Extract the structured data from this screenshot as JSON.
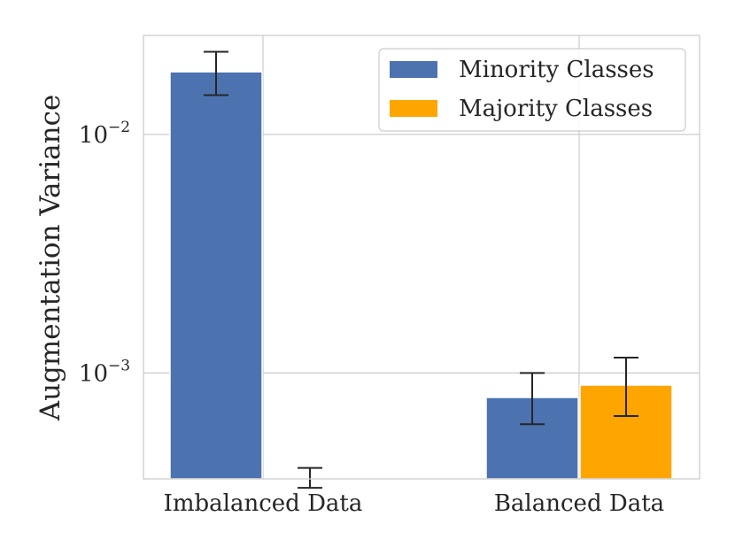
{
  "chart_data": {
    "type": "bar",
    "title": "",
    "xlabel": "",
    "ylabel": "Augmentation Variance",
    "yscale": "log",
    "ylim": [
      0.00036,
      0.026
    ],
    "yticks": [
      {
        "value": 0.01,
        "base": "10",
        "exp": "−2"
      },
      {
        "value": 0.001,
        "base": "10",
        "exp": "−3"
      }
    ],
    "grid": true,
    "legend_position": "top-right",
    "categories": [
      "Imbalanced Data",
      "Balanced Data"
    ],
    "series": [
      {
        "name": "Minority Classes",
        "color": "#4c72b0",
        "values": [
          0.0183,
          0.00079
        ],
        "err_low": [
          0.0146,
          0.00061
        ],
        "err_high": [
          0.0222,
          0.001
        ]
      },
      {
        "name": "Majority Classes",
        "color": "#ffa500",
        "values": [
          0.00036,
          0.00089
        ],
        "err_low": [
          0.00033,
          0.00066
        ],
        "err_high": [
          0.0004,
          0.00116
        ]
      }
    ]
  }
}
